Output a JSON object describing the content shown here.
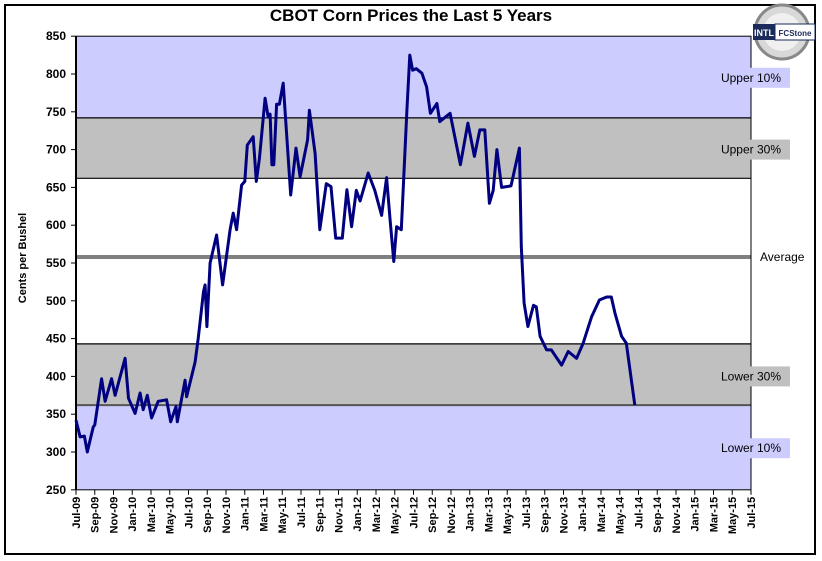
{
  "chart_data": {
    "type": "line",
    "title": "CBOT Corn Prices the Last 5 Years",
    "xlabel": "",
    "ylabel": "Cents per Bushel",
    "ylim": [
      250,
      850
    ],
    "yticks": [
      250,
      300,
      350,
      400,
      450,
      500,
      550,
      600,
      650,
      700,
      750,
      800,
      850
    ],
    "xlim": [
      "2009-07-01",
      "2015-07-01"
    ],
    "xtick_labels": [
      "Jul-09",
      "Sep-09",
      "Nov-09",
      "Jan-10",
      "Mar-10",
      "May-10",
      "Jul-10",
      "Sep-10",
      "Nov-10",
      "Jan-11",
      "Mar-11",
      "May-11",
      "Jul-11",
      "Sep-11",
      "Nov-11",
      "Jan-12",
      "Mar-12",
      "May-12",
      "Jul-12",
      "Sep-12",
      "Nov-12",
      "Jan-13",
      "Mar-13",
      "May-13",
      "Jul-13",
      "Sep-13",
      "Nov-13",
      "Jan-14",
      "Mar-14",
      "May-14",
      "Jul-14",
      "Sep-14",
      "Nov-14",
      "Jan-15",
      "Mar-15",
      "May-15",
      "Jul-15"
    ],
    "grid": false,
    "legend": "none",
    "line_color": "#000080",
    "bands": [
      {
        "label": "Upper 10%",
        "from": 742,
        "to": 850,
        "color": "#ccccff",
        "label_value": 795
      },
      {
        "label": "Upper 30%",
        "from": 662,
        "to": 742,
        "color": "#c0c0c0",
        "label_value": 700
      },
      {
        "label": "Lower 30%",
        "from": 362,
        "to": 443,
        "color": "#c0c0c0",
        "label_value": 400
      },
      {
        "label": "Lower 10%",
        "from": 250,
        "to": 362,
        "color": "#ccccff",
        "label_value": 305
      }
    ],
    "average": {
      "label": "Average",
      "value": 558,
      "color": "#808080"
    },
    "series": [
      {
        "x": [
          "2009-07-01",
          "2009-07-14",
          "2009-07-28",
          "2009-08-07",
          "2009-08-26",
          "2009-09-01",
          "2009-09-23",
          "2009-10-04",
          "2009-10-25",
          "2009-11-06",
          "2009-12-08",
          "2009-12-19",
          "2010-01-10",
          "2010-01-26",
          "2010-02-06",
          "2010-02-19",
          "2010-03-03",
          "2010-03-24",
          "2010-04-21",
          "2010-05-04",
          "2010-05-21",
          "2010-05-25",
          "2010-06-20",
          "2010-06-25",
          "2010-07-22",
          "2010-08-02",
          "2010-08-19",
          "2010-08-24",
          "2010-08-30",
          "2010-09-10",
          "2010-10-01",
          "2010-10-20",
          "2010-11-14",
          "2010-11-24",
          "2010-12-05",
          "2010-12-21",
          "2011-01-01",
          "2011-01-09",
          "2011-01-28",
          "2011-02-08",
          "2011-02-18",
          "2011-03-06",
          "2011-03-16",
          "2011-03-22",
          "2011-03-28",
          "2011-04-04",
          "2011-04-13",
          "2011-04-22",
          "2011-05-04",
          "2011-05-28",
          "2011-06-15",
          "2011-06-28",
          "2011-07-22",
          "2011-07-28",
          "2011-08-16",
          "2011-09-01",
          "2011-09-22",
          "2011-10-07",
          "2011-10-22",
          "2011-11-13",
          "2011-11-28",
          "2011-12-13",
          "2011-12-28",
          "2012-01-10",
          "2012-02-06",
          "2012-02-27",
          "2012-03-19",
          "2012-04-05",
          "2012-04-16",
          "2012-04-28",
          "2012-05-07",
          "2012-05-22",
          "2012-06-10",
          "2012-06-19",
          "2012-06-28",
          "2012-07-10",
          "2012-07-28",
          "2012-08-13",
          "2012-08-25",
          "2012-09-16",
          "2012-09-25",
          "2012-10-28",
          "2012-12-01",
          "2012-12-25",
          "2013-01-16",
          "2013-02-03",
          "2013-02-19",
          "2013-03-04",
          "2013-03-16",
          "2013-03-28",
          "2013-04-13",
          "2013-05-13",
          "2013-06-10",
          "2013-06-16",
          "2013-06-25",
          "2013-07-07",
          "2013-07-25",
          "2013-08-04",
          "2013-08-16",
          "2013-09-07",
          "2013-09-22",
          "2013-10-25",
          "2013-11-16",
          "2013-12-13",
          "2014-01-04",
          "2014-02-01",
          "2014-02-26",
          "2014-03-19",
          "2014-04-04",
          "2014-04-16",
          "2014-05-07",
          "2014-05-22",
          "2014-06-19"
        ],
        "y": [
          342,
          320,
          321,
          300,
          333,
          336,
          397,
          367,
          397,
          375,
          424,
          371,
          351,
          378,
          356,
          375,
          345,
          367,
          369,
          340,
          360,
          340,
          395,
          373,
          419,
          450,
          512,
          521,
          466,
          550,
          587,
          521,
          594,
          616,
          594,
          653,
          658,
          706,
          717,
          658,
          688,
          768,
          743,
          747,
          680,
          680,
          760,
          760,
          788,
          640,
          702,
          664,
          713,
          752,
          695,
          594,
          655,
          651,
          583,
          583,
          647,
          598,
          646,
          632,
          669,
          646,
          613,
          663,
          607,
          552,
          598,
          594,
          752,
          825,
          805,
          807,
          801,
          783,
          748,
          761,
          737,
          748,
          680,
          735,
          691,
          726,
          726,
          629,
          646,
          700,
          650,
          652,
          702,
          572,
          497,
          466,
          494,
          492,
          453,
          435,
          435,
          415,
          433,
          424,
          444,
          479,
          501,
          505,
          505,
          483,
          453,
          444,
          362
        ]
      }
    ]
  },
  "logo": {
    "text_top": "PROPERTY OF",
    "text_left": "INTL",
    "text_right": "FCStone"
  }
}
